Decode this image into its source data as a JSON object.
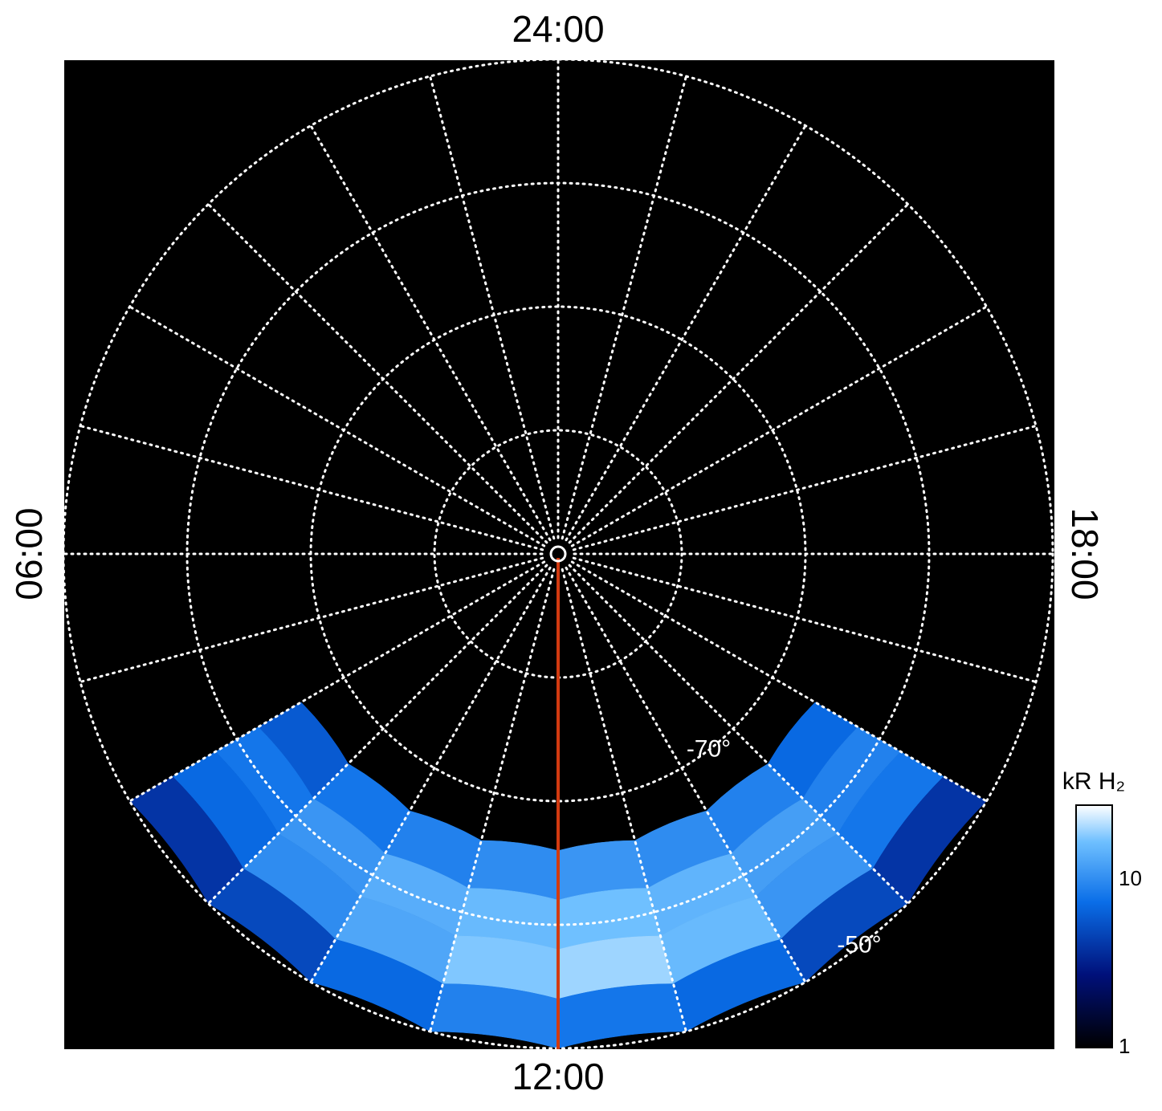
{
  "chart_data": {
    "type": "polar_heatmap",
    "local_time_labels": [
      {
        "value": 0,
        "label": "24:00"
      },
      {
        "value": 6,
        "label": "06:00"
      },
      {
        "value": 12,
        "label": "12:00"
      },
      {
        "value": 18,
        "label": "18:00"
      }
    ],
    "lat_ticks": [
      -80,
      -70,
      -60,
      -50
    ],
    "lt_ticks": [
      0,
      1,
      2,
      3,
      4,
      5,
      6,
      7,
      8,
      9,
      10,
      11,
      12,
      13,
      14,
      15,
      16,
      17,
      18,
      19,
      20,
      21,
      22,
      23
    ],
    "latitude_labels": [
      {
        "value": -70,
        "label": "-70°"
      },
      {
        "value": -50,
        "label": "-50°"
      }
    ],
    "emission": {
      "lat_bins": [
        -66,
        -62,
        -58,
        -54,
        -50
      ],
      "lt_bins": [
        8,
        9,
        10,
        11,
        12,
        13,
        14,
        15,
        16
      ],
      "values": [
        [
          6,
          8,
          9,
          10,
          11,
          10,
          9,
          7
        ],
        [
          8,
          11,
          14,
          16,
          17,
          15,
          12,
          9
        ],
        [
          7,
          10,
          13,
          18,
          20,
          16,
          11,
          8
        ],
        [
          4,
          5,
          7,
          9,
          8,
          7,
          5,
          4
        ]
      ]
    },
    "colorbar": {
      "label": "kR H₂",
      "scale": "log",
      "lim": [
        1,
        28
      ],
      "ticks": [
        1,
        10
      ]
    }
  }
}
